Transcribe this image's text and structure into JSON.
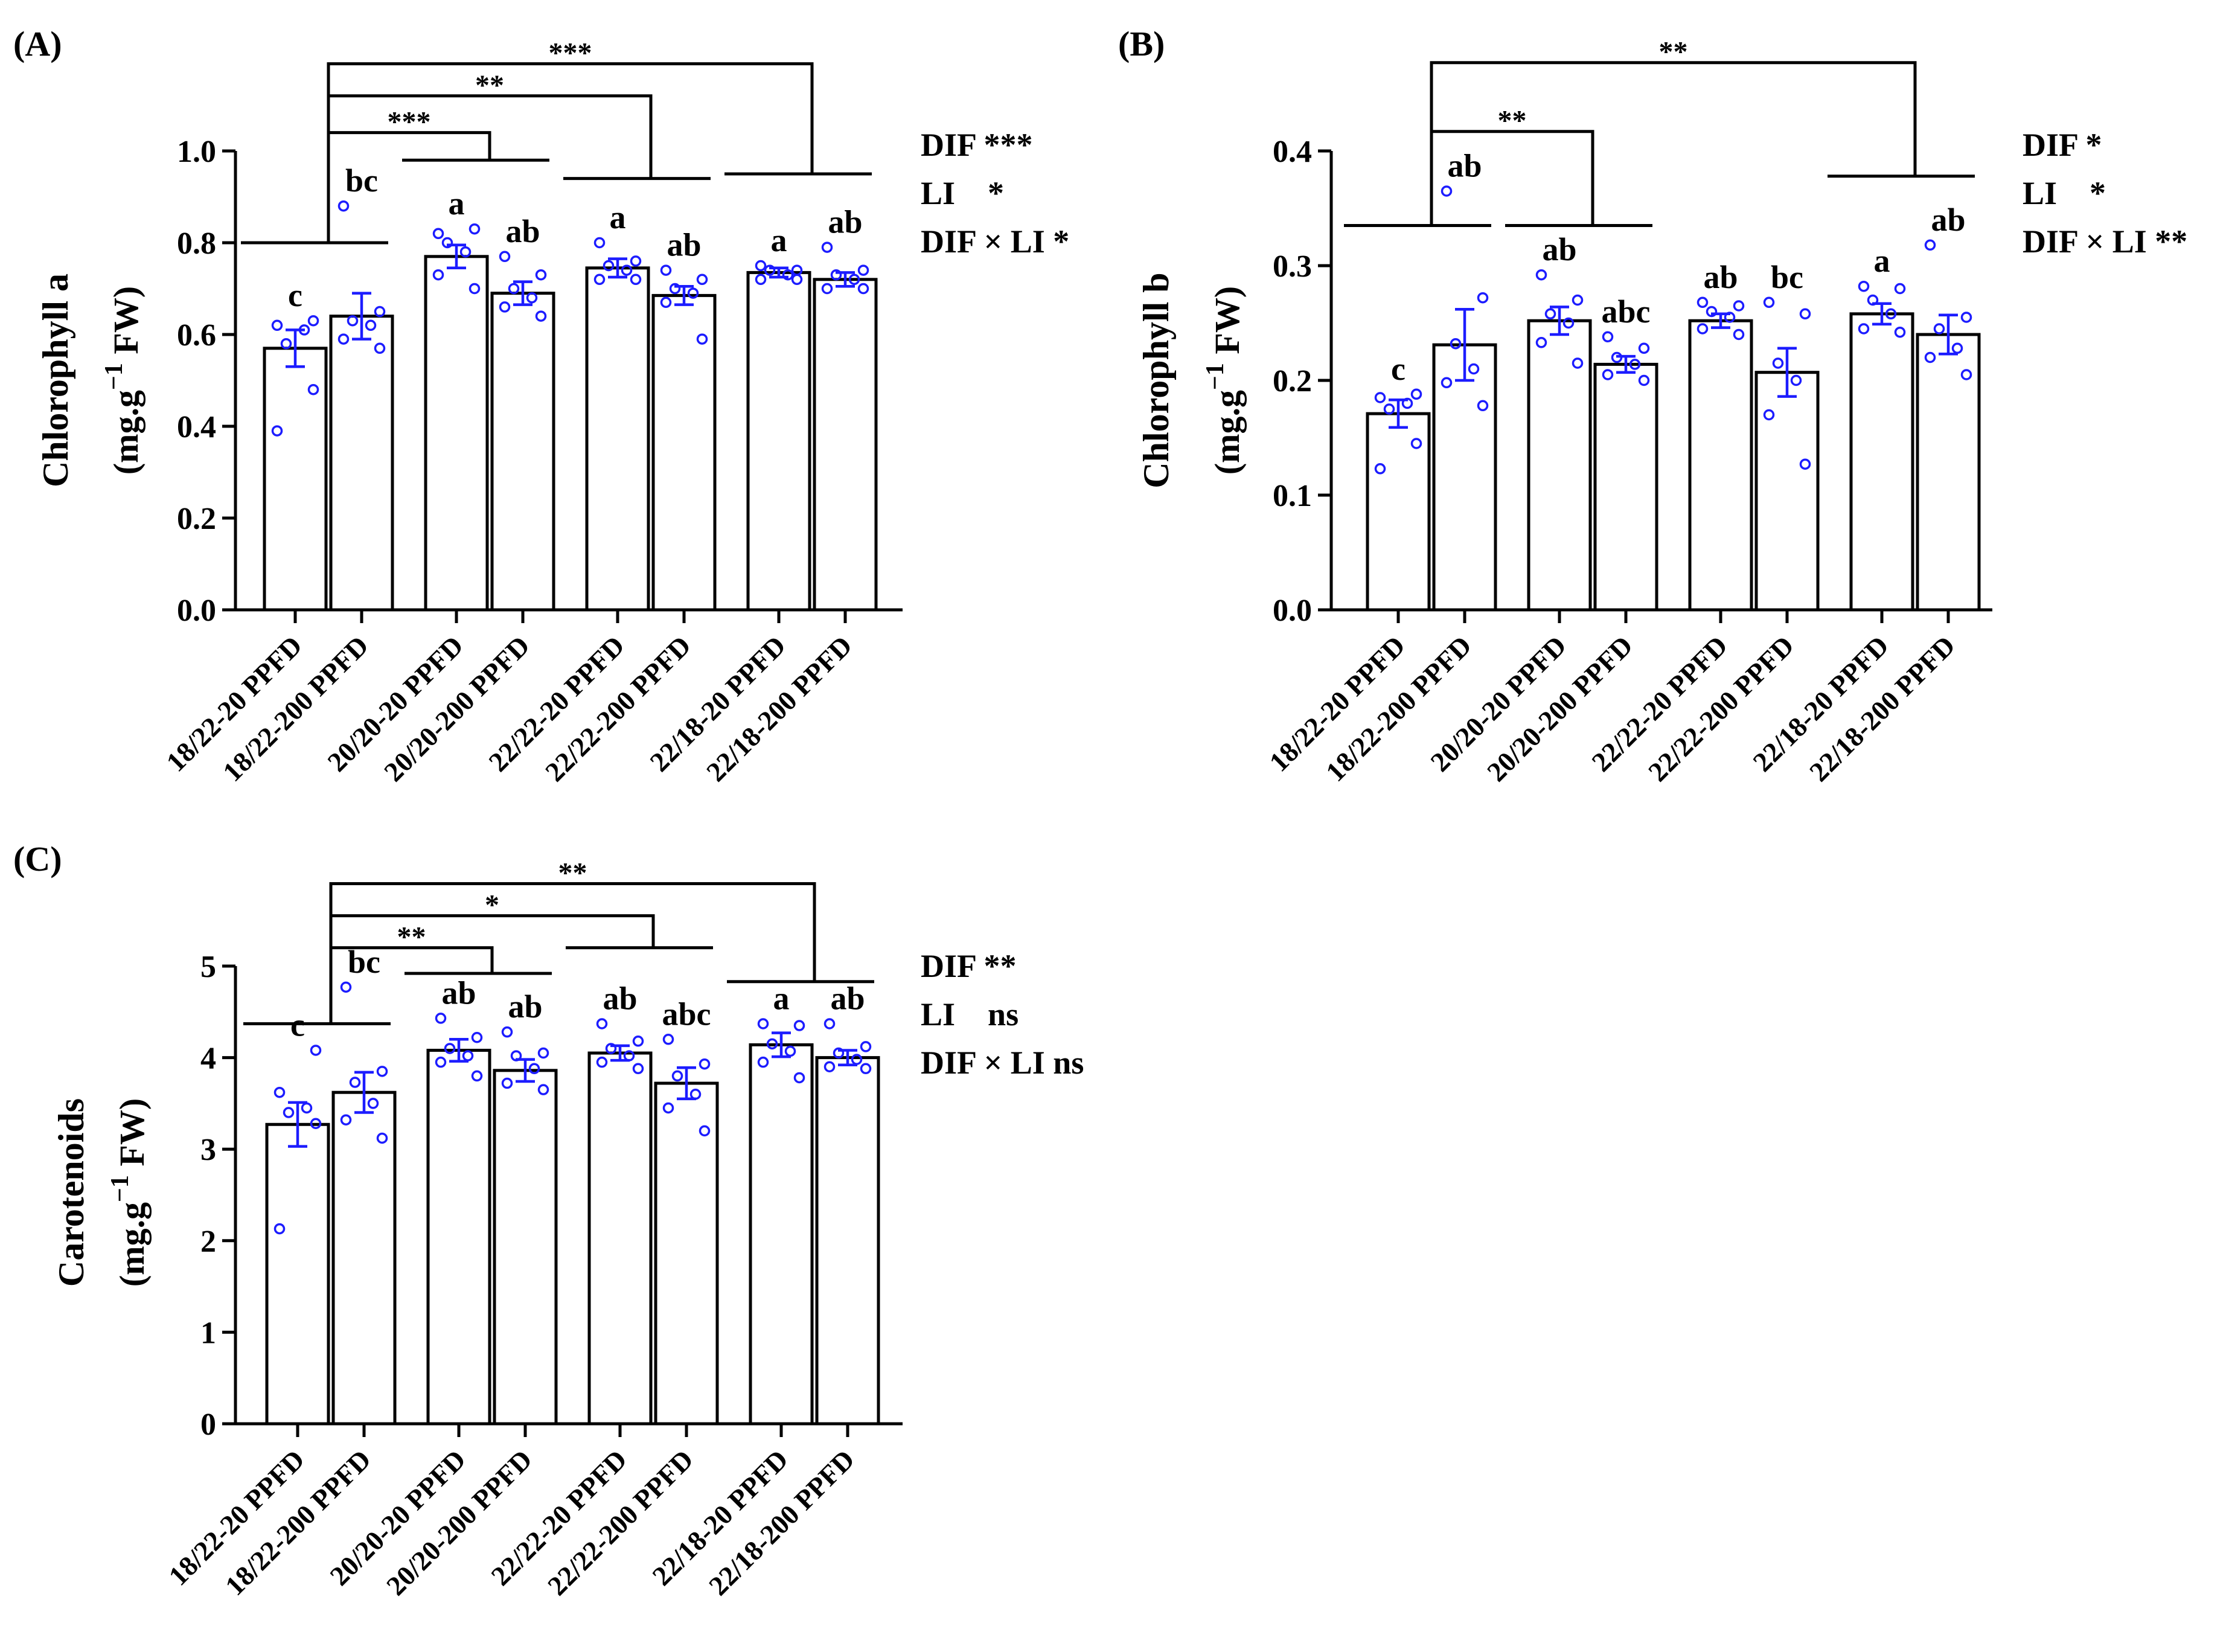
{
  "categories": [
    "18/22-20 PPFD",
    "18/22-200 PPFD",
    "20/20-20 PPFD",
    "20/20-200 PPFD",
    "22/22-20 PPFD",
    "22/22-200 PPFD",
    "22/18-20 PPFD",
    "22/18-200 PPFD"
  ],
  "chart_data": [
    {
      "id": "A",
      "type": "bar",
      "panel_label": "(A)",
      "ylabel_line1": "Chlorophyll a",
      "ylabel_line2": "(mg.g",
      "ylabel_sup": "−1",
      "ylabel_end": " FW)",
      "ylim": [
        0,
        1.0
      ],
      "yticks": [
        0.0,
        0.2,
        0.4,
        0.6,
        0.8,
        1.0
      ],
      "ytick_labels": [
        "0.0",
        "0.2",
        "0.4",
        "0.6",
        "0.8",
        "1.0"
      ],
      "values": [
        0.57,
        0.64,
        0.77,
        0.69,
        0.745,
        0.685,
        0.735,
        0.72
      ],
      "errors": [
        0.04,
        0.05,
        0.025,
        0.025,
        0.02,
        0.02,
        0.01,
        0.015
      ],
      "letters": [
        "c",
        "bc",
        "a",
        "ab",
        "a",
        "ab",
        "a",
        "ab"
      ],
      "points": [
        [
          0.39,
          0.48,
          0.58,
          0.61,
          0.62,
          0.63
        ],
        [
          0.88,
          0.65,
          0.63,
          0.62,
          0.59,
          0.57
        ],
        [
          0.82,
          0.83,
          0.8,
          0.78,
          0.73,
          0.7
        ],
        [
          0.77,
          0.73,
          0.7,
          0.68,
          0.66,
          0.64
        ],
        [
          0.8,
          0.76,
          0.75,
          0.74,
          0.72,
          0.72
        ],
        [
          0.74,
          0.72,
          0.7,
          0.69,
          0.67,
          0.59
        ],
        [
          0.75,
          0.74,
          0.74,
          0.73,
          0.72,
          0.72
        ],
        [
          0.79,
          0.74,
          0.73,
          0.72,
          0.7,
          0.7
        ]
      ],
      "groups": [
        {
          "from": 0,
          "to": 1,
          "y": 0.8
        },
        {
          "from": 2,
          "to": 3,
          "y": 0.98
        },
        {
          "from": 4,
          "to": 5,
          "y": 0.94
        },
        {
          "from": 6,
          "to": 7,
          "y": 0.95
        }
      ],
      "comparisons": [
        {
          "to_group": 1,
          "y": 1.04,
          "label": "***"
        },
        {
          "to_group": 2,
          "y": 1.12,
          "label": "**"
        },
        {
          "to_group": 3,
          "y": 1.19,
          "label": "***"
        }
      ],
      "stats": [
        "DIF ***",
        "LI    *",
        "DIF × LI *"
      ]
    },
    {
      "id": "B",
      "type": "bar",
      "panel_label": "(B)",
      "ylabel_line1": "Chlorophyll b",
      "ylabel_line2": "(mg.g",
      "ylabel_sup": "−1",
      "ylabel_end": " FW)",
      "ylim": [
        0,
        0.4
      ],
      "yticks": [
        0.0,
        0.1,
        0.2,
        0.3,
        0.4
      ],
      "ytick_labels": [
        "0.0",
        "0.1",
        "0.2",
        "0.3",
        "0.4"
      ],
      "values": [
        0.171,
        0.231,
        0.252,
        0.214,
        0.252,
        0.207,
        0.258,
        0.24
      ],
      "errors": [
        0.012,
        0.031,
        0.012,
        0.007,
        0.006,
        0.021,
        0.009,
        0.017
      ],
      "letters": [
        "c",
        "ab",
        "ab",
        "abc",
        "ab",
        "bc",
        "a",
        "ab"
      ],
      "points": [
        [
          0.123,
          0.145,
          0.175,
          0.18,
          0.185,
          0.188
        ],
        [
          0.365,
          0.272,
          0.232,
          0.21,
          0.198,
          0.178
        ],
        [
          0.292,
          0.27,
          0.258,
          0.25,
          0.233,
          0.215
        ],
        [
          0.238,
          0.228,
          0.22,
          0.214,
          0.205,
          0.2
        ],
        [
          0.268,
          0.265,
          0.26,
          0.255,
          0.245,
          0.24
        ],
        [
          0.268,
          0.258,
          0.215,
          0.2,
          0.17,
          0.127
        ],
        [
          0.282,
          0.28,
          0.27,
          0.258,
          0.245,
          0.242
        ],
        [
          0.318,
          0.255,
          0.245,
          0.228,
          0.22,
          0.205
        ]
      ],
      "groups": [
        {
          "from": 0,
          "to": 1,
          "y": 0.335
        },
        {
          "from": 2,
          "to": 3,
          "y": 0.335
        },
        {
          "from": 6,
          "to": 7,
          "y": 0.378
        }
      ],
      "comparisons": [
        {
          "to_group": 1,
          "y": 0.417,
          "label": "**"
        },
        {
          "to_group": 2,
          "y": 0.477,
          "label": "**"
        }
      ],
      "stats": [
        "DIF *",
        "LI    *",
        "DIF × LI **"
      ]
    },
    {
      "id": "C",
      "type": "bar",
      "panel_label": "(C)",
      "ylabel_line1": "Carotenoids",
      "ylabel_line2": "(mg.g",
      "ylabel_sup": "−1",
      "ylabel_end": " FW)",
      "ylim": [
        0,
        5
      ],
      "yticks": [
        0,
        1,
        2,
        3,
        4,
        5
      ],
      "ytick_labels": [
        "0",
        "1",
        "2",
        "3",
        "4",
        "5"
      ],
      "values": [
        3.27,
        3.62,
        4.08,
        3.86,
        4.05,
        3.72,
        4.14,
        4.0
      ],
      "errors": [
        0.24,
        0.22,
        0.12,
        0.12,
        0.08,
        0.17,
        0.13,
        0.08
      ],
      "letters": [
        "c",
        "bc",
        "ab",
        "ab",
        "ab",
        "abc",
        "a",
        "ab"
      ],
      "points": [
        [
          2.13,
          3.28,
          3.4,
          3.45,
          3.62,
          4.08
        ],
        [
          4.77,
          3.85,
          3.73,
          3.5,
          3.32,
          3.12
        ],
        [
          4.43,
          4.22,
          4.1,
          4.02,
          3.95,
          3.8
        ],
        [
          4.28,
          4.05,
          4.02,
          3.88,
          3.72,
          3.65
        ],
        [
          4.37,
          4.18,
          4.1,
          4.02,
          3.95,
          3.88
        ],
        [
          4.2,
          3.93,
          3.8,
          3.6,
          3.45,
          3.2
        ],
        [
          4.37,
          4.35,
          4.15,
          4.07,
          3.95,
          3.78
        ],
        [
          4.37,
          4.12,
          4.05,
          3.98,
          3.9,
          3.88
        ]
      ],
      "groups": [
        {
          "from": 0,
          "to": 1,
          "y": 4.37
        },
        {
          "from": 2,
          "to": 3,
          "y": 4.92
        },
        {
          "from": 4,
          "to": 5,
          "y": 5.2
        },
        {
          "from": 6,
          "to": 7,
          "y": 4.83
        }
      ],
      "comparisons": [
        {
          "to_group": 1,
          "y": 5.2,
          "label": "**"
        },
        {
          "to_group": 2,
          "y": 5.55,
          "label": "*"
        },
        {
          "to_group": 3,
          "y": 5.9,
          "label": "**"
        }
      ],
      "stats": [
        "DIF **",
        "LI    ns",
        "DIF × LI ns"
      ]
    }
  ]
}
